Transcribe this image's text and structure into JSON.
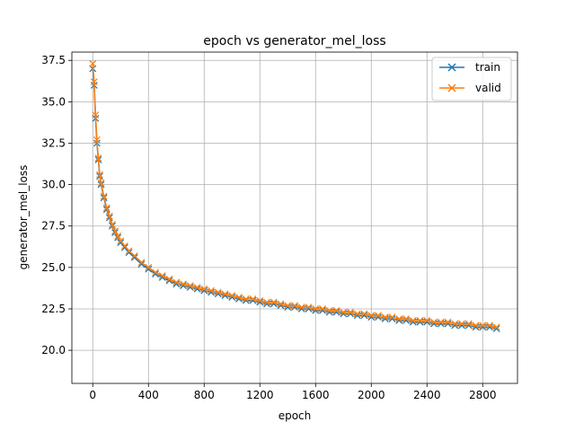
{
  "chart_data": {
    "type": "line",
    "title": "epoch vs generator_mel_loss",
    "xlabel": "epoch",
    "ylabel": "generator_mel_loss",
    "xlim": [
      -150,
      3050
    ],
    "ylim": [
      18.0,
      38.0
    ],
    "xticks": [
      0,
      400,
      800,
      1200,
      1600,
      2000,
      2400,
      2800
    ],
    "yticks": [
      20.0,
      22.5,
      25.0,
      27.5,
      30.0,
      32.5,
      35.0,
      37.5
    ],
    "grid": true,
    "legend_position": "top-right",
    "marker": "x",
    "series": [
      {
        "name": "train",
        "color": "#1f77b4",
        "x": [
          0,
          10,
          20,
          30,
          40,
          50,
          60,
          80,
          100,
          120,
          140,
          160,
          180,
          200,
          230,
          260,
          300,
          350,
          400,
          450,
          500,
          550,
          600,
          650,
          700,
          750,
          800,
          850,
          900,
          950,
          1000,
          1050,
          1100,
          1150,
          1200,
          1250,
          1300,
          1350,
          1400,
          1450,
          1500,
          1550,
          1600,
          1650,
          1700,
          1750,
          1800,
          1850,
          1900,
          1950,
          2000,
          2050,
          2100,
          2150,
          2200,
          2250,
          2300,
          2350,
          2400,
          2450,
          2500,
          2550,
          2600,
          2650,
          2700,
          2750,
          2800,
          2850,
          2900
        ],
        "y": [
          37.0,
          36.0,
          34.0,
          32.5,
          31.5,
          30.5,
          30.0,
          29.2,
          28.5,
          28.0,
          27.5,
          27.1,
          26.8,
          26.5,
          26.2,
          25.9,
          25.6,
          25.2,
          24.9,
          24.6,
          24.4,
          24.2,
          24.0,
          23.9,
          23.8,
          23.7,
          23.6,
          23.5,
          23.4,
          23.3,
          23.2,
          23.1,
          23.0,
          23.0,
          22.9,
          22.8,
          22.8,
          22.7,
          22.6,
          22.6,
          22.5,
          22.5,
          22.4,
          22.4,
          22.3,
          22.3,
          22.2,
          22.2,
          22.1,
          22.1,
          22.0,
          22.0,
          21.9,
          21.9,
          21.8,
          21.8,
          21.7,
          21.7,
          21.7,
          21.6,
          21.6,
          21.6,
          21.5,
          21.5,
          21.5,
          21.4,
          21.4,
          21.4,
          21.3
        ]
      },
      {
        "name": "valid",
        "color": "#ff7f0e",
        "x": [
          0,
          10,
          20,
          30,
          40,
          50,
          60,
          80,
          100,
          120,
          140,
          160,
          180,
          200,
          230,
          260,
          300,
          350,
          400,
          450,
          500,
          550,
          600,
          650,
          700,
          750,
          800,
          850,
          900,
          950,
          1000,
          1050,
          1100,
          1150,
          1200,
          1250,
          1300,
          1350,
          1400,
          1450,
          1500,
          1550,
          1600,
          1650,
          1700,
          1750,
          1800,
          1850,
          1900,
          1950,
          2000,
          2050,
          2100,
          2150,
          2200,
          2250,
          2300,
          2350,
          2400,
          2450,
          2500,
          2550,
          2600,
          2650,
          2700,
          2750,
          2800,
          2850,
          2900
        ],
        "y": [
          37.3,
          36.2,
          34.2,
          32.7,
          31.6,
          30.6,
          30.1,
          29.3,
          28.6,
          28.1,
          27.6,
          27.2,
          26.9,
          26.6,
          26.3,
          26.0,
          25.7,
          25.3,
          25.0,
          24.7,
          24.5,
          24.3,
          24.1,
          24.0,
          23.9,
          23.8,
          23.7,
          23.6,
          23.5,
          23.4,
          23.3,
          23.2,
          23.1,
          23.1,
          23.0,
          22.9,
          22.9,
          22.8,
          22.7,
          22.7,
          22.6,
          22.6,
          22.5,
          22.5,
          22.4,
          22.4,
          22.3,
          22.3,
          22.2,
          22.2,
          22.1,
          22.1,
          22.0,
          22.0,
          21.9,
          21.9,
          21.8,
          21.8,
          21.8,
          21.7,
          21.7,
          21.7,
          21.6,
          21.6,
          21.6,
          21.5,
          21.5,
          21.5,
          21.4
        ]
      }
    ]
  }
}
